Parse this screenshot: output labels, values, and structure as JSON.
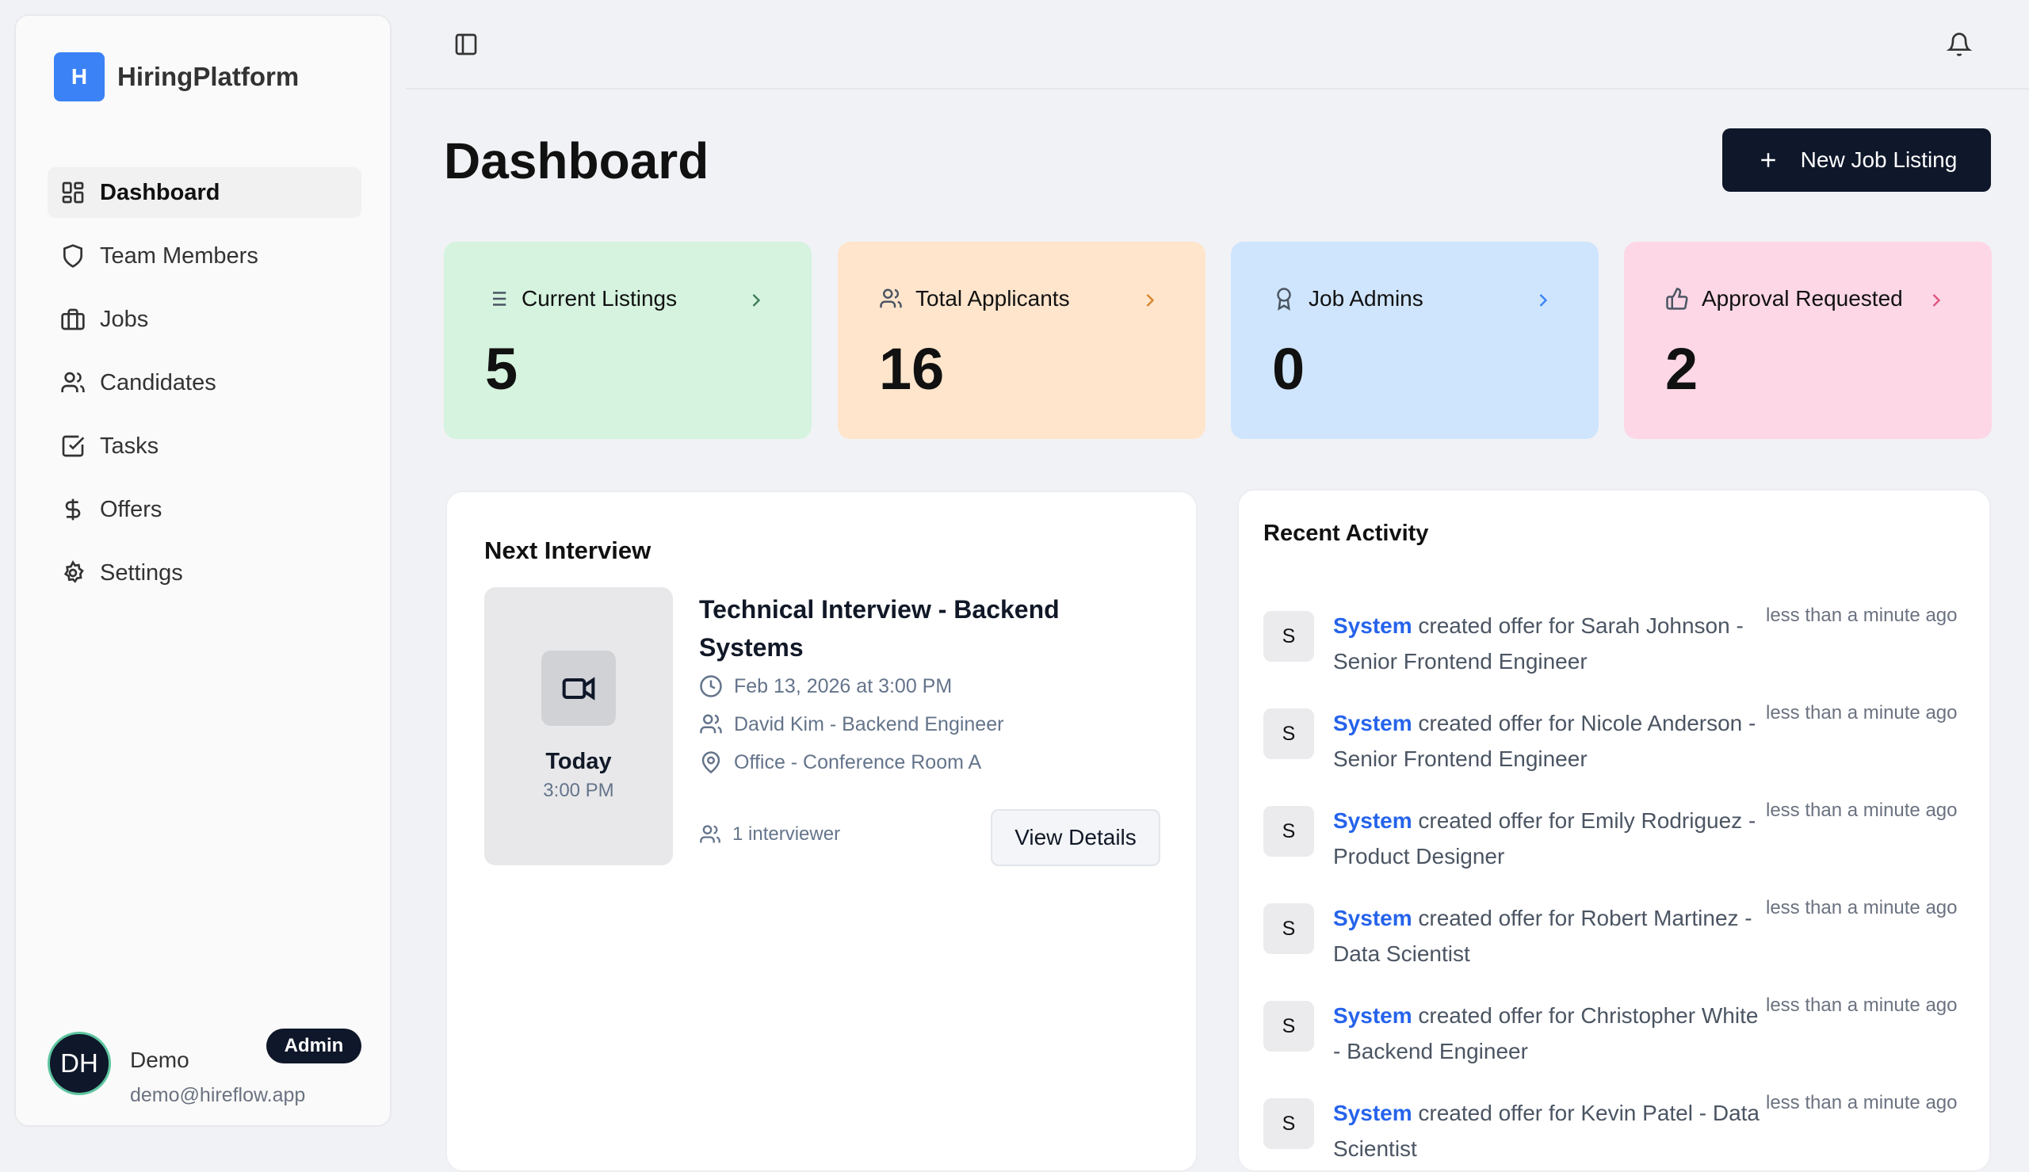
{
  "app": {
    "logo_letter": "H",
    "name": "HiringPlatform"
  },
  "sidebar": {
    "items": [
      {
        "label": "Dashboard",
        "icon": "layout-grid-icon",
        "active": true
      },
      {
        "label": "Team Members",
        "icon": "shield-icon"
      },
      {
        "label": "Jobs",
        "icon": "briefcase-icon"
      },
      {
        "label": "Candidates",
        "icon": "users-icon"
      },
      {
        "label": "Tasks",
        "icon": "check-square-icon"
      },
      {
        "label": "Offers",
        "icon": "dollar-icon"
      },
      {
        "label": "Settings",
        "icon": "gear-icon"
      }
    ]
  },
  "user": {
    "initials": "DH",
    "name": "Demo",
    "email": "demo@hireflow.app",
    "role": "Admin"
  },
  "header": {
    "title": "Dashboard",
    "new_button": "New Job Listing"
  },
  "stats": [
    {
      "label": "Current Listings",
      "value": "5",
      "icon": "list-icon",
      "bg": "#d5f3df",
      "accent": "#3f7a55"
    },
    {
      "label": "Total Applicants",
      "value": "16",
      "icon": "users-icon",
      "bg": "#ffe5cc",
      "accent": "#d9822b"
    },
    {
      "label": "Job Admins",
      "value": "0",
      "icon": "award-icon",
      "bg": "#cfe5fd",
      "accent": "#3b82f6"
    },
    {
      "label": "Approval Requested",
      "value": "2",
      "icon": "thumbs-up-icon",
      "bg": "#fdd7e5",
      "accent": "#e0527f"
    }
  ],
  "interview": {
    "heading": "Next Interview",
    "day": "Today",
    "time": "3:00 PM",
    "title": "Technical Interview - Backend Systems",
    "datetime": "Feb 13, 2026 at 3:00 PM",
    "candidate": "David Kim - Backend Engineer",
    "location": "Office - Conference Room A",
    "interviewers": "1 interviewer",
    "button": "View Details"
  },
  "activity": {
    "heading": "Recent Activity",
    "items": [
      {
        "avatar": "S",
        "actor": "System",
        "text": " created offer for Sarah Johnson - Senior Frontend Engineer",
        "time": "less than a minute ago"
      },
      {
        "avatar": "S",
        "actor": "System",
        "text": " created offer for Nicole Anderson - Senior Frontend Engineer",
        "time": "less than a minute ago"
      },
      {
        "avatar": "S",
        "actor": "System",
        "text": " created offer for Emily Rodriguez - Product Designer",
        "time": "less than a minute ago"
      },
      {
        "avatar": "S",
        "actor": "System",
        "text": " created offer for Robert Martinez - Data Scientist",
        "time": "less than a minute ago"
      },
      {
        "avatar": "S",
        "actor": "System",
        "text": " created offer for Christopher White - Backend Engineer",
        "time": "less than a minute ago"
      },
      {
        "avatar": "S",
        "actor": "System",
        "text": " created offer for Kevin Patel - Data Scientist",
        "time": "less than a minute ago"
      }
    ]
  }
}
